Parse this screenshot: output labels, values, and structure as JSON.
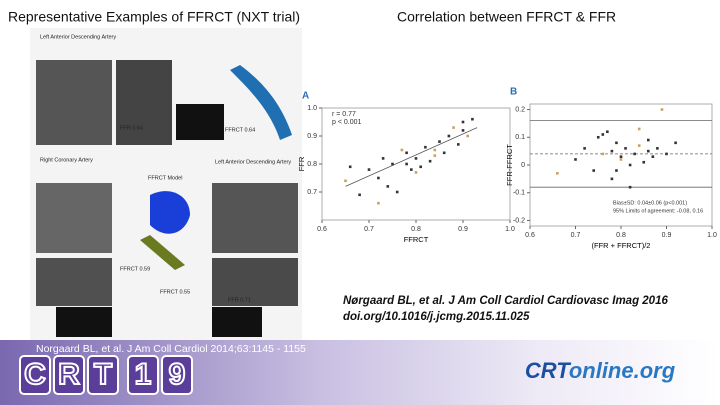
{
  "header": {
    "left_title": "Representative Examples of FFRCT (NXT trial)",
    "right_title": "Correlation between FFRCT & FFR"
  },
  "figure_left": {
    "labels": [
      "Left Anterior Descending Artery",
      "FFR 0.64",
      "FFRCT 0.64",
      "Right Coronary Artery",
      "Left Anterior Descending Artery",
      "FFRCT Model",
      "FFRCT 0.59",
      "FFRCT 0.55",
      "FFR 0.71"
    ]
  },
  "plot_a": {
    "panel": "A",
    "annotations": [
      "r = 0.77",
      "p < 0.001"
    ],
    "xlabel": "FFRCT",
    "ylabel": "FFR",
    "xlim": [
      0.6,
      1.0
    ],
    "ylim": [
      0.6,
      1.0
    ],
    "xticks": [
      0.6,
      0.7,
      0.8,
      0.9,
      {
        "value": 1,
        "label": "1.0"
      }
    ],
    "yticks": [
      0.7,
      0.8,
      0.9,
      {
        "value": 1,
        "label": "1.0"
      }
    ],
    "x": [
      0.65,
      0.66,
      0.68,
      0.7,
      0.72,
      0.73,
      0.75,
      0.76,
      0.77,
      0.78,
      0.79,
      0.8,
      0.8,
      0.81,
      0.82,
      0.83,
      0.84,
      0.85,
      0.86,
      0.87,
      0.88,
      0.89,
      0.9,
      0.9,
      0.91,
      0.92,
      0.72,
      0.78,
      0.84,
      0.74
    ],
    "y": [
      0.74,
      0.79,
      0.69,
      0.78,
      0.66,
      0.82,
      0.8,
      0.7,
      0.85,
      0.84,
      0.78,
      0.82,
      0.77,
      0.79,
      0.86,
      0.81,
      0.83,
      0.88,
      0.84,
      0.9,
      0.93,
      0.87,
      0.92,
      0.95,
      0.9,
      0.96,
      0.75,
      0.8,
      0.85,
      0.72
    ],
    "fit": [
      0.65,
      0.72,
      0.93,
      0.93
    ]
  },
  "plot_b": {
    "panel": "B",
    "annotations": [
      "Bias±SD: 0.04±0.06 (p<0.001)",
      "95% Limits of agreement: -0.08, 0.16"
    ],
    "xlabel": "(FFR + FFRCT)/2",
    "ylabel": "FFR-FFRCT",
    "xlim": [
      0.6,
      1.0
    ],
    "ylim": [
      -0.22,
      0.22
    ],
    "xticks": [
      0.6,
      0.7,
      0.8,
      0.9,
      {
        "value": 1,
        "label": "1.0"
      }
    ],
    "yticks": [
      0.2,
      0.1,
      0,
      -0.1,
      -0.2
    ],
    "bias": 0.04,
    "limits": [
      -0.08,
      0.16
    ],
    "x": [
      0.66,
      0.7,
      0.72,
      0.74,
      0.75,
      0.76,
      0.77,
      0.78,
      0.78,
      0.79,
      0.8,
      0.8,
      0.81,
      0.82,
      0.83,
      0.84,
      0.85,
      0.86,
      0.87,
      0.88,
      0.89,
      0.9,
      0.92,
      0.76,
      0.82,
      0.84,
      0.79,
      0.86
    ],
    "y": [
      -0.03,
      0.02,
      0.06,
      -0.02,
      0.1,
      0.04,
      0.12,
      0.05,
      -0.05,
      0.08,
      0.02,
      0.03,
      0.06,
      -0.08,
      0.04,
      0.07,
      0.01,
      0.05,
      0.03,
      0.06,
      0.2,
      0.04,
      0.08,
      0.11,
      0.0,
      0.13,
      -0.02,
      0.09
    ]
  },
  "citation": [
    "Nørgaard BL, et al. J Am Coll Cardiol Cardiovasc Imag 2016",
    "doi.org/10.1016/j.jcmg.2015.11.025"
  ],
  "footer": {
    "citation": "Norgaard BL, et al. J Am Coll Cardiol 2014;63:1145 - 1155",
    "logo_chars": [
      "C",
      "R",
      "T",
      "1",
      "9"
    ],
    "site_bold": "CRT",
    "site_rest": "online.org"
  }
}
